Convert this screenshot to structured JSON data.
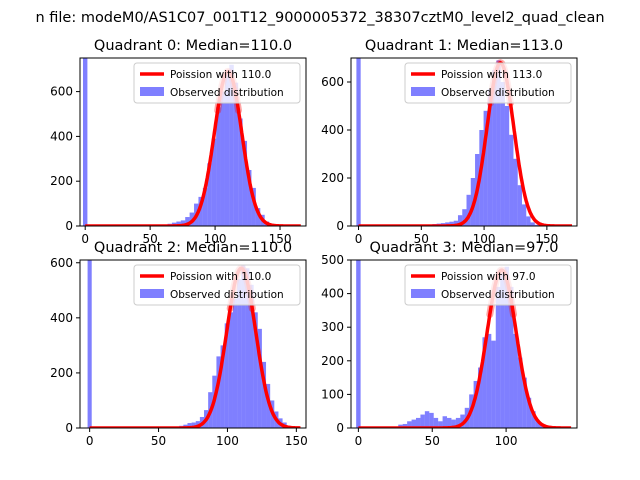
{
  "suptitle": "n file: modeM0/AS1C07_001T12_9000005372_38307cztM0_level2_quad_clean",
  "colors": {
    "poisson": "#ff0000",
    "observed": "#0000ff"
  },
  "chart_data": [
    {
      "type": "bar",
      "title": "Quadrant 0: Median=110.0",
      "xlim": [
        -4,
        170
      ],
      "ylim": [
        0,
        750
      ],
      "xticks": [
        0,
        50,
        100,
        150
      ],
      "yticks": [
        0,
        200,
        400,
        600
      ],
      "bin_width": 3.4,
      "bins": [
        [
          -1.7,
          750
        ],
        [
          60,
          5
        ],
        [
          63.4,
          10
        ],
        [
          66.8,
          15
        ],
        [
          70.2,
          20
        ],
        [
          73.6,
          25
        ],
        [
          77,
          40
        ],
        [
          80.4,
          60
        ],
        [
          83.8,
          100
        ],
        [
          87.2,
          130
        ],
        [
          90.6,
          170
        ],
        [
          94,
          280
        ],
        [
          97.4,
          390
        ],
        [
          100.8,
          530
        ],
        [
          104.2,
          600
        ],
        [
          107.6,
          690
        ],
        [
          111,
          720
        ],
        [
          114.4,
          640
        ],
        [
          117.8,
          480
        ],
        [
          121.2,
          380
        ],
        [
          124.6,
          250
        ],
        [
          128,
          170
        ],
        [
          131.4,
          80
        ],
        [
          134.8,
          50
        ],
        [
          138.2,
          20
        ],
        [
          141.6,
          10
        ],
        [
          145,
          5
        ]
      ],
      "poisson_mean": 110.0,
      "poisson_peak": 690,
      "legend": {
        "poisson": "Poission with 110.0",
        "observed": "Observed distribution"
      }
    },
    {
      "type": "bar",
      "title": "Quadrant 1: Median=113.0",
      "xlim": [
        -6,
        174
      ],
      "ylim": [
        0,
        700
      ],
      "xticks": [
        0,
        50,
        100,
        150
      ],
      "yticks": [
        0,
        200,
        400,
        600
      ],
      "bin_width": 3.4,
      "bins": [
        [
          -1.7,
          700
        ],
        [
          52,
          5
        ],
        [
          55.4,
          5
        ],
        [
          58.8,
          8
        ],
        [
          62.2,
          10
        ],
        [
          65.6,
          12
        ],
        [
          69,
          15
        ],
        [
          72.4,
          18
        ],
        [
          75.8,
          22
        ],
        [
          79.2,
          45
        ],
        [
          82.6,
          70
        ],
        [
          86,
          130
        ],
        [
          89.4,
          200
        ],
        [
          92.8,
          300
        ],
        [
          96.2,
          400
        ],
        [
          99.6,
          480
        ],
        [
          103,
          570
        ],
        [
          106.4,
          650
        ],
        [
          109.8,
          690
        ],
        [
          113.2,
          600
        ],
        [
          116.6,
          500
        ],
        [
          120,
          380
        ],
        [
          123.4,
          280
        ],
        [
          126.8,
          170
        ],
        [
          130.2,
          90
        ],
        [
          133.6,
          40
        ],
        [
          137,
          15
        ],
        [
          140.4,
          5
        ]
      ],
      "poisson_mean": 113.0,
      "poisson_peak": 680,
      "legend": {
        "poisson": "Poission with 113.0",
        "observed": "Observed distribution"
      }
    },
    {
      "type": "bar",
      "title": "Quadrant 2: Median=110.0",
      "xlim": [
        -7,
        157
      ],
      "ylim": [
        0,
        610
      ],
      "xticks": [
        0,
        50,
        100,
        150
      ],
      "yticks": [
        0,
        200,
        400,
        600
      ],
      "bin_width": 3.0,
      "bins": [
        [
          -1.5,
          610
        ],
        [
          62,
          3
        ],
        [
          65,
          8
        ],
        [
          68,
          12
        ],
        [
          71,
          18
        ],
        [
          74,
          20
        ],
        [
          77,
          25
        ],
        [
          80,
          40
        ],
        [
          83,
          65
        ],
        [
          86,
          130
        ],
        [
          89,
          190
        ],
        [
          92,
          260
        ],
        [
          95,
          300
        ],
        [
          98,
          380
        ],
        [
          101,
          420
        ],
        [
          104,
          470
        ],
        [
          107,
          540
        ],
        [
          110,
          590
        ],
        [
          113,
          580
        ],
        [
          116,
          520
        ],
        [
          119,
          420
        ],
        [
          122,
          360
        ],
        [
          125,
          240
        ],
        [
          128,
          160
        ],
        [
          131,
          100
        ],
        [
          134,
          60
        ],
        [
          137,
          35
        ],
        [
          140,
          20
        ],
        [
          143,
          8
        ],
        [
          146,
          3
        ]
      ],
      "poisson_mean": 110.0,
      "poisson_peak": 580,
      "legend": {
        "poisson": "Poission with 110.0",
        "observed": "Observed distribution"
      }
    },
    {
      "type": "bar",
      "title": "Quadrant 3: Median=97.0",
      "xlim": [
        -5,
        148
      ],
      "ylim": [
        0,
        500
      ],
      "xticks": [
        0,
        50,
        100
      ],
      "yticks": [
        0,
        100,
        200,
        300,
        400,
        500
      ],
      "bin_width": 3.0,
      "bins": [
        [
          -1.5,
          500
        ],
        [
          27,
          10
        ],
        [
          30,
          12
        ],
        [
          33,
          20
        ],
        [
          36,
          25
        ],
        [
          39,
          30
        ],
        [
          42,
          40
        ],
        [
          45,
          50
        ],
        [
          48,
          45
        ],
        [
          51,
          30
        ],
        [
          54,
          20
        ],
        [
          57,
          35
        ],
        [
          60,
          30
        ],
        [
          63,
          25
        ],
        [
          66,
          30
        ],
        [
          69,
          40
        ],
        [
          72,
          60
        ],
        [
          75,
          100
        ],
        [
          78,
          140
        ],
        [
          81,
          180
        ],
        [
          84,
          270
        ],
        [
          87,
          280
        ],
        [
          90,
          260
        ],
        [
          93,
          420
        ],
        [
          96,
          460
        ],
        [
          99,
          480
        ],
        [
          102,
          420
        ],
        [
          105,
          280
        ],
        [
          108,
          210
        ],
        [
          111,
          150
        ],
        [
          114,
          90
        ],
        [
          117,
          50
        ],
        [
          120,
          20
        ],
        [
          123,
          10
        ],
        [
          126,
          5
        ]
      ],
      "poisson_mean": 97.0,
      "poisson_peak": 470,
      "legend": {
        "poisson": "Poission with 97.0",
        "observed": "Observed distribution"
      }
    }
  ]
}
